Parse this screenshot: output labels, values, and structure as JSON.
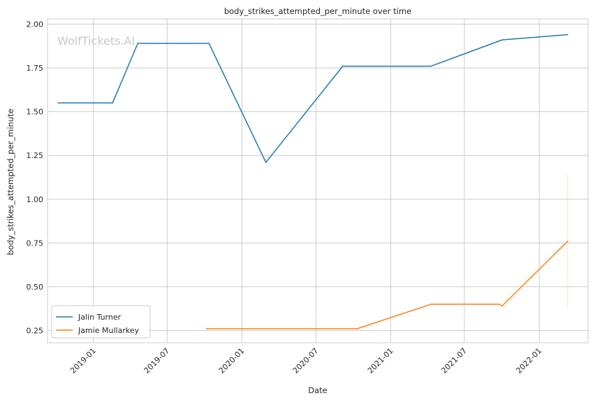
{
  "chart_data": {
    "type": "line",
    "title": "body_strikes_attempted_per_minute over time",
    "xlabel": "Date",
    "ylabel": "body_strikes_attempted_per_minute",
    "watermark": "WolfTickets.AI",
    "xlim": [
      "2018-09-10",
      "2022-05-01"
    ],
    "ylim": [
      0.18,
      2.03
    ],
    "x_ticks": [
      "2019-01-01",
      "2019-07-01",
      "2020-01-01",
      "2020-07-01",
      "2021-01-01",
      "2021-07-01",
      "2022-01-01"
    ],
    "x_tick_labels": [
      "2019-01",
      "2019-07",
      "2020-01",
      "2020-07",
      "2021-01",
      "2021-07",
      "2022-01"
    ],
    "y_ticks": [
      0.25,
      0.5,
      0.75,
      1.0,
      1.25,
      1.5,
      1.75,
      2.0
    ],
    "y_tick_labels": [
      "0.25",
      "0.50",
      "0.75",
      "1.00",
      "1.25",
      "1.50",
      "1.75",
      "2.00"
    ],
    "grid": true,
    "legend_position": "lower-left",
    "series": [
      {
        "name": "Jalin Turner",
        "color": "#1f77b4",
        "points": [
          [
            "2018-10-06",
            1.55
          ],
          [
            "2019-02-17",
            1.55
          ],
          [
            "2019-04-20",
            1.89
          ],
          [
            "2019-10-12",
            1.89
          ],
          [
            "2020-02-29",
            1.21
          ],
          [
            "2020-09-05",
            1.76
          ],
          [
            "2021-04-10",
            1.76
          ],
          [
            "2021-10-02",
            1.91
          ],
          [
            "2022-03-12",
            1.94
          ]
        ]
      },
      {
        "name": "Jamie Mullarkey",
        "color": "#ff7f0e",
        "points": [
          [
            "2019-10-06",
            0.26
          ],
          [
            "2020-10-10",
            0.26
          ],
          [
            "2021-04-10",
            0.4
          ],
          [
            "2021-09-25",
            0.4
          ],
          [
            "2021-10-02",
            0.39
          ],
          [
            "2022-03-12",
            0.76
          ]
        ],
        "error_band": {
          "x": "2022-03-12",
          "low": 0.38,
          "high": 1.14
        }
      }
    ]
  }
}
